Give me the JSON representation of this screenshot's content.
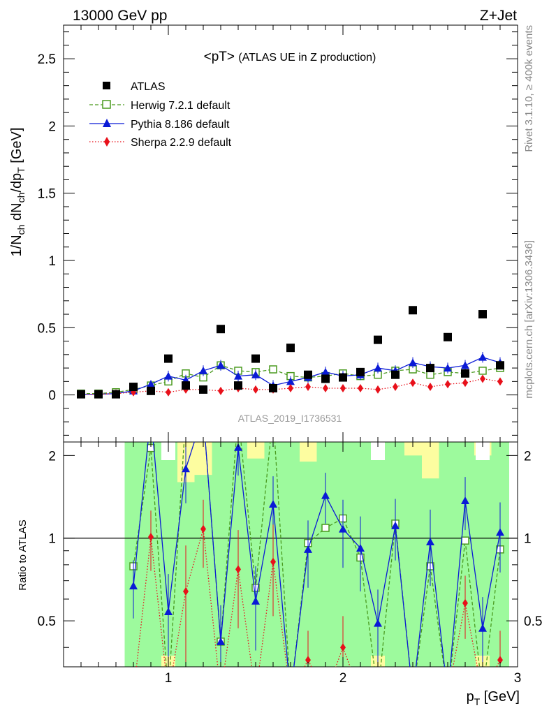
{
  "header": {
    "left": "13000 GeV pp",
    "right": "Z+Jet"
  },
  "side_labels": {
    "rivet": "Rivet 3.1.10, ≥ 400k events",
    "mcplots": "mcplots.cern.ch [arXiv:1306.3436]"
  },
  "chart_data": {
    "type": "scatter",
    "title": "<pT>",
    "title_suffix": "(ATLAS UE in Z production)",
    "watermark": "ATLAS_2019_I1736531",
    "xlabel": "p",
    "xlabel_sub": "T",
    "xlabel_unit": "[GeV]",
    "ylabel": "1/N_ch dN_ch/dp_T [GeV]",
    "ratio_ylabel": "Ratio to ATLAS",
    "xlim": [
      0.4,
      3.0
    ],
    "ylim": [
      -0.35,
      2.75
    ],
    "ratio_ylim": [
      0.34,
      2.24
    ],
    "x_ticks": [
      1,
      2,
      3
    ],
    "y_ticks": [
      0,
      0.5,
      1,
      1.5,
      2,
      2.5
    ],
    "ratio_ticks": [
      0.5,
      1,
      2
    ],
    "x": [
      0.5,
      0.6,
      0.7,
      0.8,
      0.9,
      1.0,
      1.1,
      1.2,
      1.3,
      1.4,
      1.5,
      1.6,
      1.7,
      1.8,
      1.9,
      2.0,
      2.1,
      2.2,
      2.3,
      2.4,
      2.5,
      2.6,
      2.7,
      2.8,
      2.9
    ],
    "legend": [
      {
        "label": "ATLAS"
      },
      {
        "label": "Herwig 7.2.1 default"
      },
      {
        "label": "Pythia 8.186 default"
      },
      {
        "label": "Sherpa 2.2.9 default"
      }
    ],
    "data": {
      "name": "ATLAS",
      "values": [
        0.005,
        0.005,
        0.005,
        0.06,
        0.03,
        0.27,
        0.07,
        0.04,
        0.49,
        0.07,
        0.27,
        0.05,
        0.35,
        0.15,
        0.12,
        0.13,
        0.17,
        0.41,
        0.15,
        0.63,
        0.2,
        0.43,
        0.16,
        0.6,
        0.22
      ]
    },
    "series": [
      {
        "name": "Herwig 7.2.1 default",
        "color": "#4a9a1f",
        "marker": "open-square",
        "line": "dashed",
        "values": [
          0.01,
          0.01,
          0.02,
          0.04,
          0.07,
          0.1,
          0.16,
          0.13,
          0.22,
          0.18,
          0.17,
          0.19,
          0.14,
          0.13,
          0.14,
          0.16,
          0.14,
          0.15,
          0.18,
          0.19,
          0.15,
          0.17,
          0.16,
          0.18,
          0.2
        ],
        "errors": [
          0.005,
          0.005,
          0.005,
          0.01,
          0.01,
          0.015,
          0.02,
          0.02,
          0.025,
          0.02,
          0.02,
          0.02,
          0.02,
          0.02,
          0.02,
          0.02,
          0.02,
          0.02,
          0.025,
          0.025,
          0.025,
          0.025,
          0.025,
          0.025,
          0.025
        ],
        "ratio": [
          null,
          null,
          null,
          0.79,
          2.13,
          null,
          null,
          null,
          0.42,
          null,
          0.66,
          null,
          null,
          0.96,
          1.09,
          1.18,
          0.85,
          null,
          1.13,
          null,
          0.79,
          null,
          0.98,
          null,
          0.91
        ]
      },
      {
        "name": "Pythia 8.186 default",
        "color": "#0a1ad6",
        "marker": "filled-triangle",
        "line": "solid",
        "values": [
          0.005,
          0.005,
          0.01,
          0.03,
          0.08,
          0.14,
          0.11,
          0.18,
          0.22,
          0.14,
          0.15,
          0.07,
          0.1,
          0.13,
          0.17,
          0.14,
          0.15,
          0.2,
          0.18,
          0.24,
          0.21,
          0.2,
          0.22,
          0.28,
          0.24
        ],
        "errors": [
          0.005,
          0.005,
          0.005,
          0.01,
          0.03,
          0.04,
          0.04,
          0.04,
          0.04,
          0.04,
          0.04,
          0.04,
          0.04,
          0.04,
          0.04,
          0.04,
          0.04,
          0.04,
          0.04,
          0.04,
          0.04,
          0.04,
          0.04,
          0.04,
          0.04
        ],
        "ratio": [
          null,
          null,
          null,
          0.67,
          null,
          0.54,
          1.79,
          null,
          0.42,
          2.14,
          0.59,
          1.33,
          null,
          0.91,
          1.43,
          1.08,
          0.92,
          0.49,
          1.11,
          null,
          0.97,
          null,
          1.37,
          0.47,
          1.05
        ],
        "ratio_errors": [
          null,
          null,
          null,
          0.16,
          null,
          0.2,
          0.45,
          null,
          0.15,
          0.45,
          0.2,
          0.35,
          null,
          0.25,
          0.3,
          0.3,
          0.28,
          0.16,
          0.28,
          null,
          0.3,
          null,
          0.3,
          0.14,
          0.3
        ]
      },
      {
        "name": "Sherpa 2.2.9 default",
        "color": "#e8101a",
        "marker": "filled-diamond",
        "line": "dotted",
        "values": [
          0.005,
          0.005,
          0.01,
          0.02,
          0.03,
          0.02,
          0.04,
          0.04,
          0.03,
          0.05,
          0.04,
          0.04,
          0.05,
          0.06,
          0.05,
          0.05,
          0.05,
          0.04,
          0.06,
          0.09,
          0.06,
          0.08,
          0.09,
          0.12,
          0.1
        ],
        "errors": [
          0.003,
          0.003,
          0.003,
          0.005,
          0.005,
          0.005,
          0.01,
          0.01,
          0.01,
          0.01,
          0.01,
          0.01,
          0.01,
          0.01,
          0.01,
          0.01,
          0.01,
          0.01,
          0.01,
          0.015,
          0.01,
          0.015,
          0.015,
          0.02,
          0.015
        ],
        "ratio": [
          null,
          null,
          null,
          null,
          1.01,
          null,
          0.64,
          1.08,
          null,
          0.77,
          null,
          0.82,
          null,
          0.36,
          null,
          0.4,
          null,
          null,
          null,
          null,
          null,
          null,
          0.58,
          null,
          0.36
        ],
        "ratio_errors": [
          null,
          null,
          null,
          null,
          0.25,
          null,
          0.3,
          0.3,
          null,
          0.3,
          null,
          0.3,
          null,
          0.1,
          null,
          0.12,
          null,
          null,
          null,
          null,
          null,
          null,
          0.15,
          null,
          0.1
        ]
      }
    ],
    "ratio_band": {
      "x_range": [
        0.75,
        2.95
      ],
      "green": [
        [
          0.34,
          2.24
        ],
        [
          0.34,
          2.24
        ],
        [
          0.34,
          2.24
        ],
        [
          0.34,
          2.24
        ],
        [
          0.34,
          2.24
        ],
        [
          0.34,
          2.24
        ],
        [
          0.34,
          2.24
        ],
        [
          0.34,
          2.24
        ],
        [
          0.34,
          2.24
        ],
        [
          0.34,
          2.24
        ],
        [
          0.34,
          2.24
        ],
        [
          0.34,
          2.24
        ],
        [
          0.34,
          2.24
        ],
        [
          0.34,
          2.24
        ],
        [
          0.34,
          2.24
        ],
        [
          0.34,
          2.24
        ],
        [
          0.34,
          2.24
        ],
        [
          0.34,
          2.24
        ],
        [
          0.34,
          2.24
        ],
        [
          0.34,
          2.24
        ],
        [
          0.34,
          2.24
        ],
        [
          0.34,
          2.24
        ]
      ],
      "yellow_tops": [
        null,
        null,
        null,
        1.6,
        1.7,
        null,
        null,
        1.95,
        null,
        null,
        1.9,
        null,
        null,
        null,
        null,
        null,
        2.0,
        1.65,
        null,
        null,
        2.0,
        null,
        null,
        1.7,
        2.05,
        null
      ]
    }
  }
}
